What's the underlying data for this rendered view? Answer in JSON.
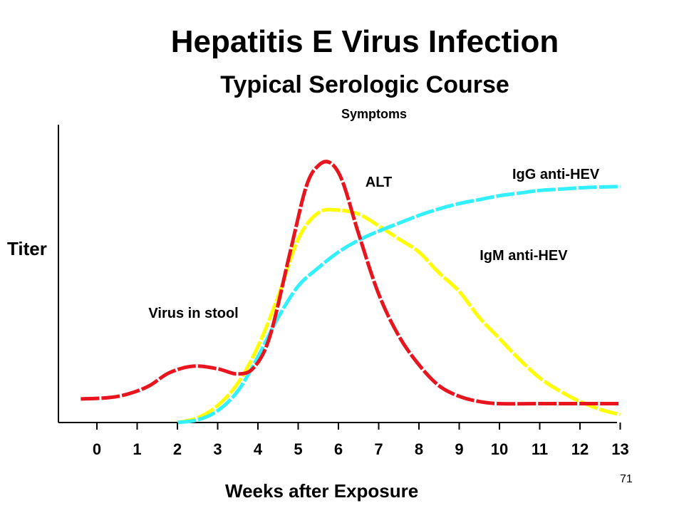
{
  "chart_data": {
    "type": "line",
    "title": "Hepatitis E Virus Infection",
    "subtitle": "Typical Serologic Course",
    "annotation": "Symptoms",
    "xlabel": "Weeks after Exposure",
    "ylabel": "Titer",
    "page_number": "71",
    "xlim": [
      -1,
      13
    ],
    "ylim": [
      0,
      100
    ],
    "x_ticks": [
      0,
      1,
      2,
      3,
      4,
      5,
      6,
      7,
      8,
      9,
      10,
      11,
      12,
      13
    ],
    "x_tick_labels": [
      "0",
      "1",
      "2",
      "3",
      "4",
      "5",
      "6",
      "7",
      "8",
      "9",
      "10",
      "11",
      "12",
      "13"
    ],
    "grid": false,
    "series": [
      {
        "name": "Virus in stool",
        "color": "#e8141e",
        "x": [
          -0.4,
          0.3,
          0.8,
          1.3,
          1.8,
          2.4,
          3.0,
          3.5,
          3.9,
          4.3,
          4.8,
          5.2,
          5.5,
          5.8,
          6.1,
          6.5,
          7.0,
          7.5,
          8.0,
          8.5,
          9.0,
          9.5,
          10.0,
          11.0,
          12.0,
          13.0
        ],
        "y": [
          9,
          9.5,
          11,
          14,
          19,
          21.5,
          20.5,
          18.5,
          21,
          33,
          65,
          90,
          98,
          99,
          92,
          72,
          49,
          33,
          22,
          14,
          10,
          8,
          7.2,
          7.2,
          7.2,
          7.2
        ]
      },
      {
        "name": "IgM anti-HEV",
        "color": "#ffff00",
        "x": [
          2.0,
          2.5,
          3.0,
          3.5,
          4.0,
          4.5,
          5.0,
          5.5,
          6.0,
          6.5,
          7.0,
          7.5,
          8.0,
          8.5,
          9.0,
          9.5,
          10.0,
          10.5,
          11.0,
          11.5,
          12.0,
          12.5,
          13.0
        ],
        "y": [
          0,
          1.8,
          6.5,
          15,
          29,
          48,
          70,
          80,
          81,
          79.5,
          75,
          70,
          65,
          57,
          50,
          40,
          32,
          24,
          17,
          12,
          8,
          5,
          3
        ]
      },
      {
        "name": "IgG anti-HEV",
        "color": "#33f0ff",
        "x": [
          2.0,
          2.5,
          3.0,
          3.5,
          4.0,
          4.5,
          5.0,
          5.5,
          6.0,
          6.5,
          7.0,
          7.5,
          8.0,
          8.5,
          9.0,
          9.5,
          10.0,
          10.5,
          11.0,
          11.5,
          12.0,
          12.5,
          13.0
        ],
        "y": [
          0,
          1,
          4.5,
          12,
          25,
          40,
          52,
          59,
          65,
          69.5,
          73,
          76,
          79,
          81.5,
          83.5,
          85,
          86.5,
          87.5,
          88.5,
          89,
          89.5,
          89.8,
          90
        ]
      },
      {
        "name": "ALT",
        "color": "#e8141e",
        "x": [],
        "y": []
      }
    ],
    "curve_labels": [
      {
        "text": "ALT",
        "x": 7.0,
        "y": 90
      },
      {
        "text": "IgG anti-HEV",
        "x": 11.4,
        "y": 93
      },
      {
        "text": "IgM anti-HEV",
        "x": 10.6,
        "y": 62
      },
      {
        "text": "Virus in stool",
        "x": 2.4,
        "y": 40
      }
    ]
  }
}
